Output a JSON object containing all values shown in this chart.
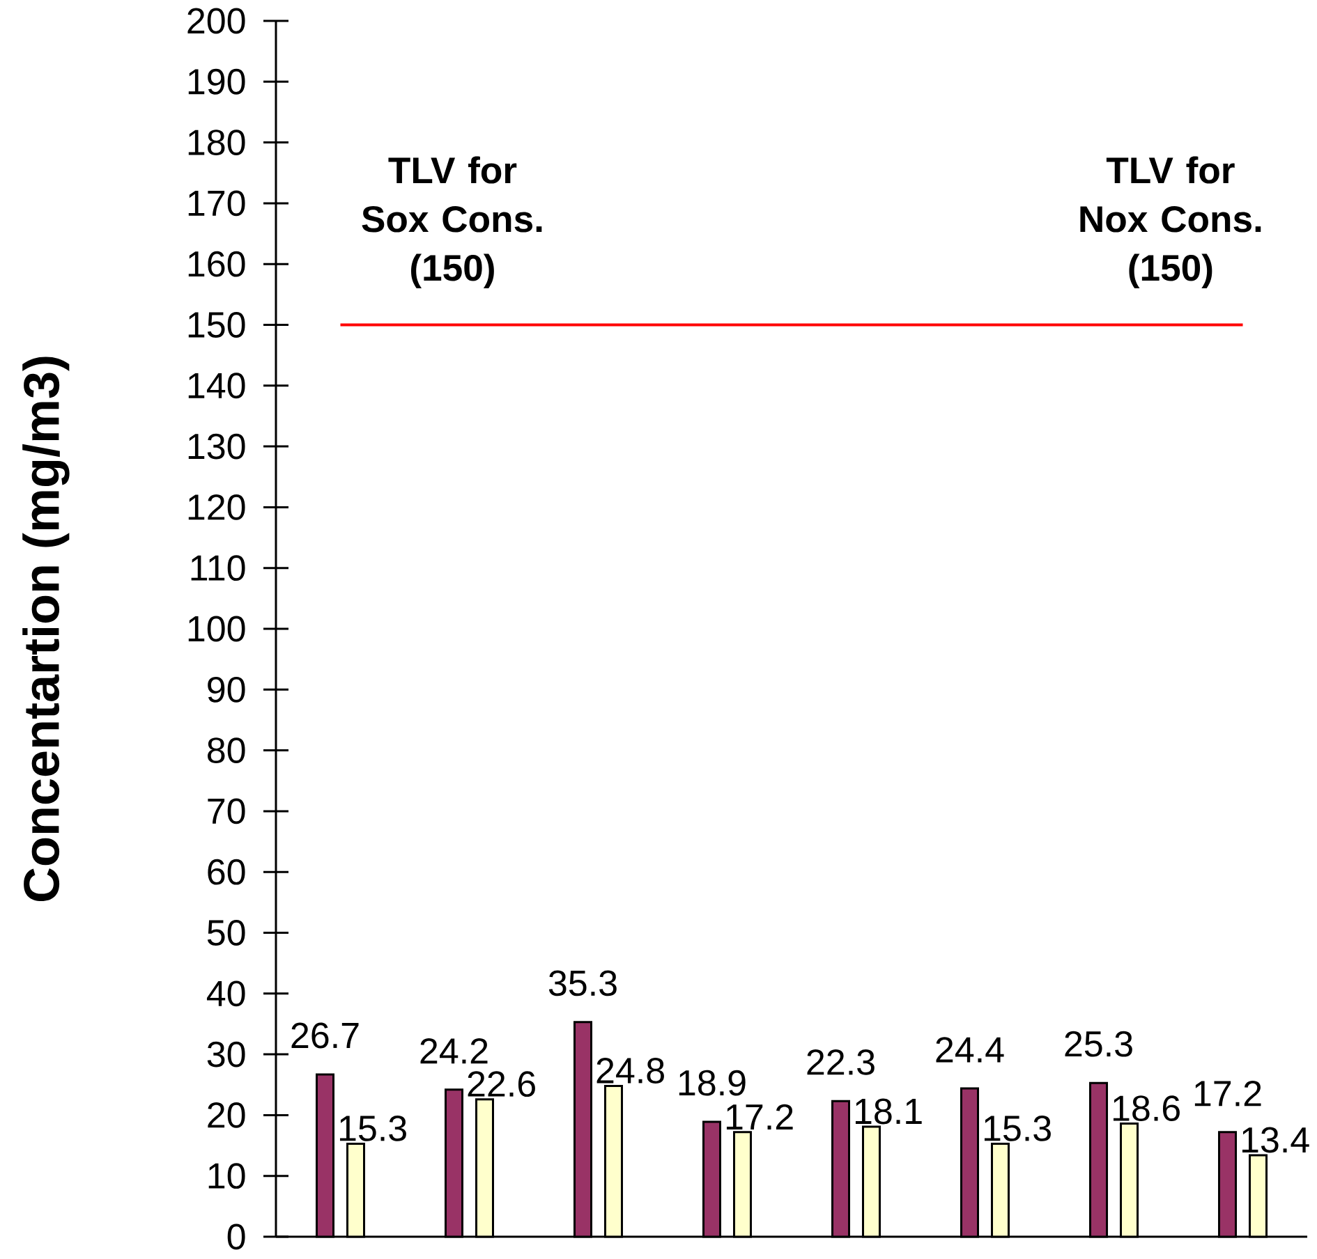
{
  "chart_data": {
    "type": "bar",
    "ylabel": "Concentartion (mg/m3)",
    "categories": [
      null,
      null,
      null,
      null,
      null,
      null,
      null,
      null
    ],
    "series": [
      {
        "color": "#993366",
        "values": [
          26.7,
          24.2,
          35.3,
          18.9,
          22.3,
          24.4,
          25.3,
          17.2
        ]
      },
      {
        "color": "#ffffcc",
        "values": [
          15.3,
          22.6,
          24.8,
          17.2,
          18.1,
          15.3,
          18.6,
          13.4
        ]
      }
    ],
    "ylim": [
      0,
      200
    ],
    "yticks": [
      0,
      10,
      20,
      30,
      40,
      50,
      60,
      70,
      80,
      90,
      100,
      110,
      120,
      130,
      140,
      150,
      160,
      170,
      180,
      190,
      200
    ],
    "data_labels": true,
    "ref_lines": [
      {
        "axis": "y",
        "value": 150,
        "color": "#ff0000"
      }
    ],
    "annotations": [
      {
        "text": "TLV for Sox Cons. (150)",
        "y": 150
      },
      {
        "text": "TLV for Nox Cons. (150)",
        "y": 150
      }
    ]
  }
}
